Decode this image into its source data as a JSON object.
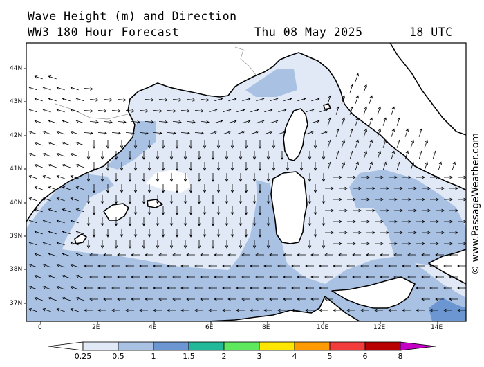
{
  "header": {
    "title_line1": "Wave Height (m) and Direction",
    "title_line2": "WW3 180 Hour Forecast",
    "date": "Thu 08 May 2025",
    "time": "18 UTC"
  },
  "map": {
    "lat_labels": [
      "44N",
      "43N",
      "42N",
      "41N",
      "40N",
      "39N",
      "38N",
      "37N"
    ],
    "lon_labels": [
      "0",
      "2E",
      "4E",
      "6E",
      "8E",
      "10E",
      "12E",
      "14E"
    ],
    "ocean_color": "#e1e9f6",
    "land_color": "#ffffff",
    "coast_color": "#000000"
  },
  "colorbar": {
    "labels": [
      "0.25",
      "0.5",
      "1",
      "1.5",
      "2",
      "3",
      "4",
      "5",
      "6",
      "8"
    ],
    "colors": [
      "#ffffff",
      "#e1e9f6",
      "#a9c2e4",
      "#6b96d2",
      "#22b89a",
      "#5ee85e",
      "#ffe600",
      "#ff9a00",
      "#f23c3c",
      "#b80000",
      "#c400c4"
    ]
  },
  "credit": "© www.PassageWeather.com"
}
